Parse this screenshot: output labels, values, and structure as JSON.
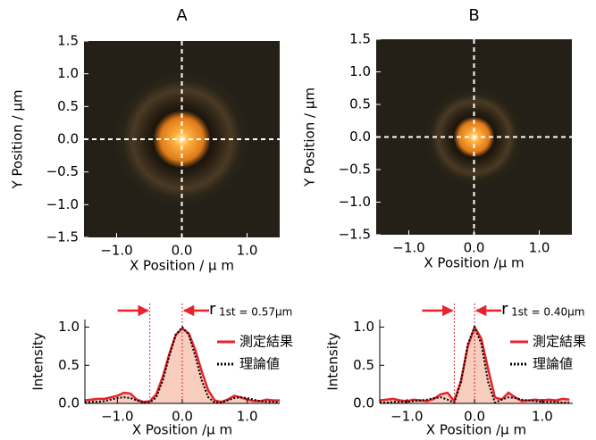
{
  "chart_data": [
    {
      "type": "image",
      "title": "A",
      "xlabel": "X Position / μ m",
      "ylabel": "Y Position / μm",
      "xlim": [
        -1.5,
        1.5
      ],
      "ylim": [
        -1.5,
        1.5
      ],
      "xticks": [
        {
          "value": -1,
          "label": "−1.0"
        },
        {
          "value": 0,
          "label": "0.0"
        },
        {
          "value": 1,
          "label": "1.0"
        }
      ],
      "yticks": [
        1.5,
        {
          "value": 1,
          "label": "1.0"
        },
        0.5,
        {
          "value": 0,
          "label": "0.0"
        },
        {
          "value": -0.5,
          "label": "−0.5"
        },
        {
          "value": -1,
          "label": "−1.0"
        },
        {
          "value": -1.5,
          "label": "−1.5"
        }
      ],
      "crosshair": {
        "x": 0,
        "y": 0
      }
    },
    {
      "type": "image",
      "title": "B",
      "xlabel": "X Position  /μ m",
      "ylabel": "Y Position / μm",
      "xlim": [
        -1.5,
        1.5
      ],
      "ylim": [
        -1.5,
        1.5
      ],
      "xticks": [
        {
          "value": -1,
          "label": "−1.0"
        },
        {
          "value": 0,
          "label": "0.0"
        },
        {
          "value": 1,
          "label": "1.0"
        }
      ],
      "yticks": [
        1.5,
        {
          "value": 1,
          "label": "1.0"
        },
        0.5,
        {
          "value": 0,
          "label": "0.0"
        },
        {
          "value": -0.5,
          "label": "−0.5"
        },
        {
          "value": -1,
          "label": "−1.0"
        },
        {
          "value": -1.5,
          "label": "−1.5"
        }
      ],
      "crosshair": {
        "x": 0,
        "y": 0
      }
    },
    {
      "type": "line",
      "xlabel": "X Position /μ m",
      "ylabel": "Intensity",
      "xlim": [
        -1.5,
        1.5
      ],
      "ylim": [
        0,
        1.1
      ],
      "xticks": [
        {
          "value": -1,
          "label": "−1.0"
        },
        {
          "value": 0,
          "label": "0.0"
        },
        {
          "value": 1,
          "label": "1.0"
        }
      ],
      "yticks": [
        {
          "value": 0,
          "label": "0.0"
        },
        0.5,
        {
          "value": 1,
          "label": "1.0"
        }
      ],
      "x": [
        -1.5,
        -1.4,
        -1.3,
        -1.2,
        -1.1,
        -1.0,
        -0.9,
        -0.8,
        -0.7,
        -0.6,
        -0.5,
        -0.4,
        -0.3,
        -0.2,
        -0.1,
        0,
        0.1,
        0.2,
        0.3,
        0.4,
        0.5,
        0.6,
        0.7,
        0.8,
        0.9,
        1.0,
        1.1,
        1.2,
        1.3,
        1.4,
        1.5
      ],
      "series": [
        {
          "name": "測定結果",
          "color": "#e8222a",
          "fill": "#f6cdbf",
          "values": [
            0.04,
            0.05,
            0.06,
            0.06,
            0.08,
            0.1,
            0.14,
            0.13,
            0.05,
            0.02,
            0.03,
            0.12,
            0.35,
            0.65,
            0.9,
            0.98,
            0.92,
            0.7,
            0.42,
            0.17,
            0.04,
            0.02,
            0.05,
            0.1,
            0.08,
            0.05,
            0.03,
            0.03,
            0.05,
            0.04,
            0.04
          ]
        },
        {
          "name": "理論値",
          "color": "#000000",
          "style": "dotted",
          "values": [
            0.01,
            0.02,
            0.02,
            0.03,
            0.05,
            0.07,
            0.08,
            0.07,
            0.04,
            0.01,
            0.01,
            0.08,
            0.3,
            0.62,
            0.9,
            1.0,
            0.9,
            0.62,
            0.3,
            0.08,
            0.01,
            0.01,
            0.04,
            0.07,
            0.08,
            0.07,
            0.05,
            0.03,
            0.02,
            0.02,
            0.01
          ]
        }
      ],
      "vlines": [
        -0.5,
        0
      ],
      "vline_color": "#e8222a",
      "annotation": {
        "symbol": "r",
        "text": "1st = 0.57μm"
      }
    },
    {
      "type": "line",
      "xlabel": "X Position /μ m",
      "ylabel": "Intensity",
      "xlim": [
        -1.4,
        1.45
      ],
      "ylim": [
        0,
        1.1
      ],
      "xticks": [
        {
          "value": -1,
          "label": "−1.0"
        },
        {
          "value": 0,
          "label": "0.0"
        },
        {
          "value": 1,
          "label": "1.0"
        }
      ],
      "yticks": [
        {
          "value": 0,
          "label": "0.0"
        },
        0.5,
        {
          "value": 1,
          "label": "1.0"
        }
      ],
      "x": [
        -1.4,
        -1.3,
        -1.2,
        -1.1,
        -1.0,
        -0.9,
        -0.8,
        -0.7,
        -0.6,
        -0.5,
        -0.4,
        -0.3,
        -0.2,
        -0.1,
        0,
        0.1,
        0.2,
        0.3,
        0.4,
        0.5,
        0.6,
        0.7,
        0.8,
        0.9,
        1.0,
        1.1,
        1.2,
        1.3,
        1.4
      ],
      "series": [
        {
          "name": "測定結果",
          "color": "#e8222a",
          "fill": "#f6cdbf",
          "values": [
            0.04,
            0.05,
            0.06,
            0.04,
            0.03,
            0.05,
            0.04,
            0.03,
            0.06,
            0.12,
            0.14,
            0.03,
            0.3,
            0.75,
            1.0,
            0.85,
            0.45,
            0.08,
            0.05,
            0.14,
            0.08,
            0.03,
            0.04,
            0.05,
            0.04,
            0.05,
            0.04,
            0.06,
            0.05
          ]
        },
        {
          "name": "理論値",
          "color": "#000000",
          "style": "dotted",
          "values": [
            0.01,
            0.01,
            0.02,
            0.02,
            0.02,
            0.03,
            0.04,
            0.05,
            0.07,
            0.08,
            0.05,
            0.01,
            0.28,
            0.78,
            1.0,
            0.78,
            0.28,
            0.01,
            0.05,
            0.08,
            0.07,
            0.05,
            0.04,
            0.03,
            0.02,
            0.02,
            0.02,
            0.01,
            0.01
          ]
        }
      ],
      "vlines": [
        -0.3,
        0
      ],
      "vline_color": "#e8222a",
      "annotation": {
        "symbol": "r",
        "text": "1st = 0.40μm"
      }
    }
  ]
}
